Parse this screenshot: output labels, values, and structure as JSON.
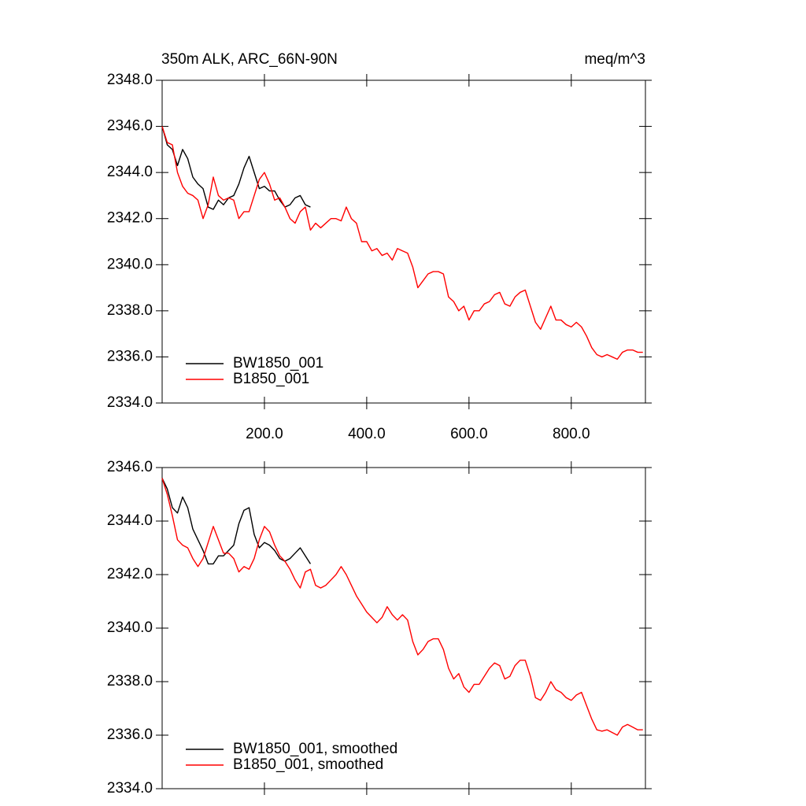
{
  "chart_data": [
    {
      "type": "line",
      "title": "350m ALK, ARC_66N-90N",
      "units": "meq/m^3",
      "xlim": [
        0,
        945
      ],
      "ylim": [
        2334,
        2348
      ],
      "xticks": [
        {
          "value": 200,
          "label": "200.0"
        },
        {
          "value": 400,
          "label": "400.0"
        },
        {
          "value": 600,
          "label": "600.0"
        },
        {
          "value": 800,
          "label": "800.0"
        }
      ],
      "yticks": [
        {
          "value": 2334,
          "label": "2334.0"
        },
        {
          "value": 2336,
          "label": "2336.0"
        },
        {
          "value": 2338,
          "label": "2338.0"
        },
        {
          "value": 2340,
          "label": "2340.0"
        },
        {
          "value": 2342,
          "label": "2342.0"
        },
        {
          "value": 2344,
          "label": "2344.0"
        },
        {
          "value": 2346,
          "label": "2346.0"
        },
        {
          "value": 2348,
          "label": "2348.0"
        }
      ],
      "legend": "lower left",
      "series": [
        {
          "name": "BW1850_001",
          "color": "#000000",
          "x": [
            0,
            10,
            20,
            30,
            40,
            50,
            60,
            70,
            80,
            90,
            100,
            110,
            120,
            130,
            140,
            150,
            160,
            170,
            180,
            190,
            200,
            210,
            220,
            230,
            240,
            250,
            260,
            270,
            280,
            290
          ],
          "values": [
            2346.0,
            2345.2,
            2345.0,
            2344.3,
            2345.0,
            2344.6,
            2343.8,
            2343.5,
            2343.3,
            2342.5,
            2342.4,
            2342.8,
            2342.6,
            2342.9,
            2343.0,
            2343.5,
            2344.2,
            2344.7,
            2344.0,
            2343.3,
            2343.4,
            2343.2,
            2343.2,
            2342.8,
            2342.5,
            2342.6,
            2342.9,
            2343.0,
            2342.6,
            2342.5
          ]
        },
        {
          "name": "B1850_001",
          "color": "#ff0000",
          "x": [
            0,
            10,
            20,
            30,
            40,
            50,
            60,
            70,
            80,
            90,
            100,
            110,
            120,
            130,
            140,
            150,
            160,
            170,
            180,
            190,
            200,
            210,
            220,
            230,
            240,
            250,
            260,
            270,
            280,
            290,
            300,
            310,
            320,
            330,
            340,
            350,
            360,
            370,
            380,
            390,
            400,
            410,
            420,
            430,
            440,
            450,
            460,
            470,
            480,
            490,
            500,
            510,
            520,
            530,
            540,
            550,
            560,
            570,
            580,
            590,
            600,
            610,
            620,
            630,
            640,
            650,
            660,
            670,
            680,
            690,
            700,
            710,
            720,
            730,
            740,
            750,
            760,
            770,
            780,
            790,
            800,
            810,
            820,
            830,
            840,
            850,
            860,
            870,
            880,
            890,
            900,
            910,
            920,
            930,
            940
          ],
          "values": [
            2346.0,
            2345.3,
            2345.2,
            2344.0,
            2343.4,
            2343.1,
            2343.0,
            2342.8,
            2342.0,
            2342.6,
            2343.8,
            2343.0,
            2342.8,
            2342.9,
            2342.8,
            2342.0,
            2342.3,
            2342.3,
            2343.0,
            2343.7,
            2344.0,
            2343.5,
            2342.8,
            2342.9,
            2342.5,
            2342.0,
            2341.8,
            2342.3,
            2342.5,
            2341.5,
            2341.8,
            2341.6,
            2341.8,
            2342.0,
            2342.0,
            2341.9,
            2342.5,
            2342.0,
            2341.8,
            2341.0,
            2341.0,
            2340.6,
            2340.7,
            2340.4,
            2340.5,
            2340.2,
            2340.7,
            2340.6,
            2340.5,
            2339.9,
            2339.0,
            2339.3,
            2339.6,
            2339.7,
            2339.7,
            2339.6,
            2338.6,
            2338.4,
            2338.0,
            2338.2,
            2337.6,
            2338.0,
            2338.0,
            2338.3,
            2338.4,
            2338.7,
            2338.8,
            2338.3,
            2338.2,
            2338.6,
            2338.8,
            2338.9,
            2338.2,
            2337.5,
            2337.2,
            2337.7,
            2338.2,
            2337.6,
            2337.6,
            2337.4,
            2337.3,
            2337.5,
            2337.3,
            2336.9,
            2336.4,
            2336.1,
            2336.0,
            2336.1,
            2336.0,
            2335.9,
            2336.2,
            2336.3,
            2336.3,
            2336.2,
            2336.2
          ]
        }
      ]
    },
    {
      "type": "line",
      "xlim": [
        0,
        945
      ],
      "ylim": [
        2334,
        2346
      ],
      "xticks": [
        200,
        400,
        600,
        800
      ],
      "yticks": [
        {
          "value": 2334,
          "label": "2334.0"
        },
        {
          "value": 2336,
          "label": "2336.0"
        },
        {
          "value": 2338,
          "label": "2338.0"
        },
        {
          "value": 2340,
          "label": "2340.0"
        },
        {
          "value": 2342,
          "label": "2342.0"
        },
        {
          "value": 2344,
          "label": "2344.0"
        },
        {
          "value": 2346,
          "label": "2346.0"
        }
      ],
      "legend": "lower left",
      "series": [
        {
          "name": "BW1850_001, smoothed",
          "color": "#000000",
          "x": [
            0,
            10,
            20,
            30,
            40,
            50,
            60,
            70,
            80,
            90,
            100,
            110,
            120,
            130,
            140,
            150,
            160,
            170,
            180,
            190,
            200,
            210,
            220,
            230,
            240,
            250,
            260,
            270,
            280,
            290
          ],
          "values": [
            2345.6,
            2345.2,
            2344.5,
            2344.3,
            2344.9,
            2344.5,
            2343.7,
            2343.3,
            2342.9,
            2342.4,
            2342.4,
            2342.7,
            2342.7,
            2342.9,
            2343.1,
            2343.9,
            2344.4,
            2344.5,
            2343.5,
            2343.0,
            2343.2,
            2343.1,
            2342.9,
            2342.6,
            2342.5,
            2342.6,
            2342.8,
            2343.0,
            2342.7,
            2342.4
          ]
        },
        {
          "name": "B1850_001, smoothed",
          "color": "#ff0000",
          "x": [
            0,
            10,
            20,
            30,
            40,
            50,
            60,
            70,
            80,
            90,
            100,
            110,
            120,
            130,
            140,
            150,
            160,
            170,
            180,
            190,
            200,
            210,
            220,
            230,
            240,
            250,
            260,
            270,
            280,
            290,
            300,
            310,
            320,
            330,
            340,
            350,
            360,
            370,
            380,
            390,
            400,
            410,
            420,
            430,
            440,
            450,
            460,
            470,
            480,
            490,
            500,
            510,
            520,
            530,
            540,
            550,
            560,
            570,
            580,
            590,
            600,
            610,
            620,
            630,
            640,
            650,
            660,
            670,
            680,
            690,
            700,
            710,
            720,
            730,
            740,
            750,
            760,
            770,
            780,
            790,
            800,
            810,
            820,
            830,
            840,
            850,
            860,
            870,
            880,
            890,
            900,
            910,
            920,
            930,
            940
          ],
          "values": [
            2345.6,
            2345.0,
            2344.2,
            2343.3,
            2343.1,
            2343.0,
            2342.6,
            2342.3,
            2342.6,
            2343.2,
            2343.8,
            2343.3,
            2342.8,
            2342.8,
            2342.6,
            2342.1,
            2342.3,
            2342.2,
            2342.6,
            2343.3,
            2343.8,
            2343.6,
            2343.1,
            2342.7,
            2342.5,
            2342.2,
            2341.8,
            2341.5,
            2342.1,
            2342.2,
            2341.6,
            2341.5,
            2341.6,
            2341.8,
            2342.0,
            2342.3,
            2342.0,
            2341.6,
            2341.2,
            2340.9,
            2340.6,
            2340.4,
            2340.2,
            2340.4,
            2340.8,
            2340.5,
            2340.3,
            2340.5,
            2340.3,
            2339.5,
            2339.0,
            2339.2,
            2339.5,
            2339.6,
            2339.6,
            2339.2,
            2338.5,
            2338.1,
            2338.3,
            2337.8,
            2337.6,
            2337.9,
            2337.9,
            2338.2,
            2338.5,
            2338.7,
            2338.6,
            2338.1,
            2338.2,
            2338.6,
            2338.8,
            2338.8,
            2338.2,
            2337.4,
            2337.3,
            2337.6,
            2338.0,
            2337.7,
            2337.6,
            2337.4,
            2337.3,
            2337.5,
            2337.6,
            2337.1,
            2336.6,
            2336.2,
            2336.15,
            2336.2,
            2336.1,
            2336.0,
            2336.3,
            2336.4,
            2336.3,
            2336.2,
            2336.2
          ]
        }
      ]
    }
  ]
}
